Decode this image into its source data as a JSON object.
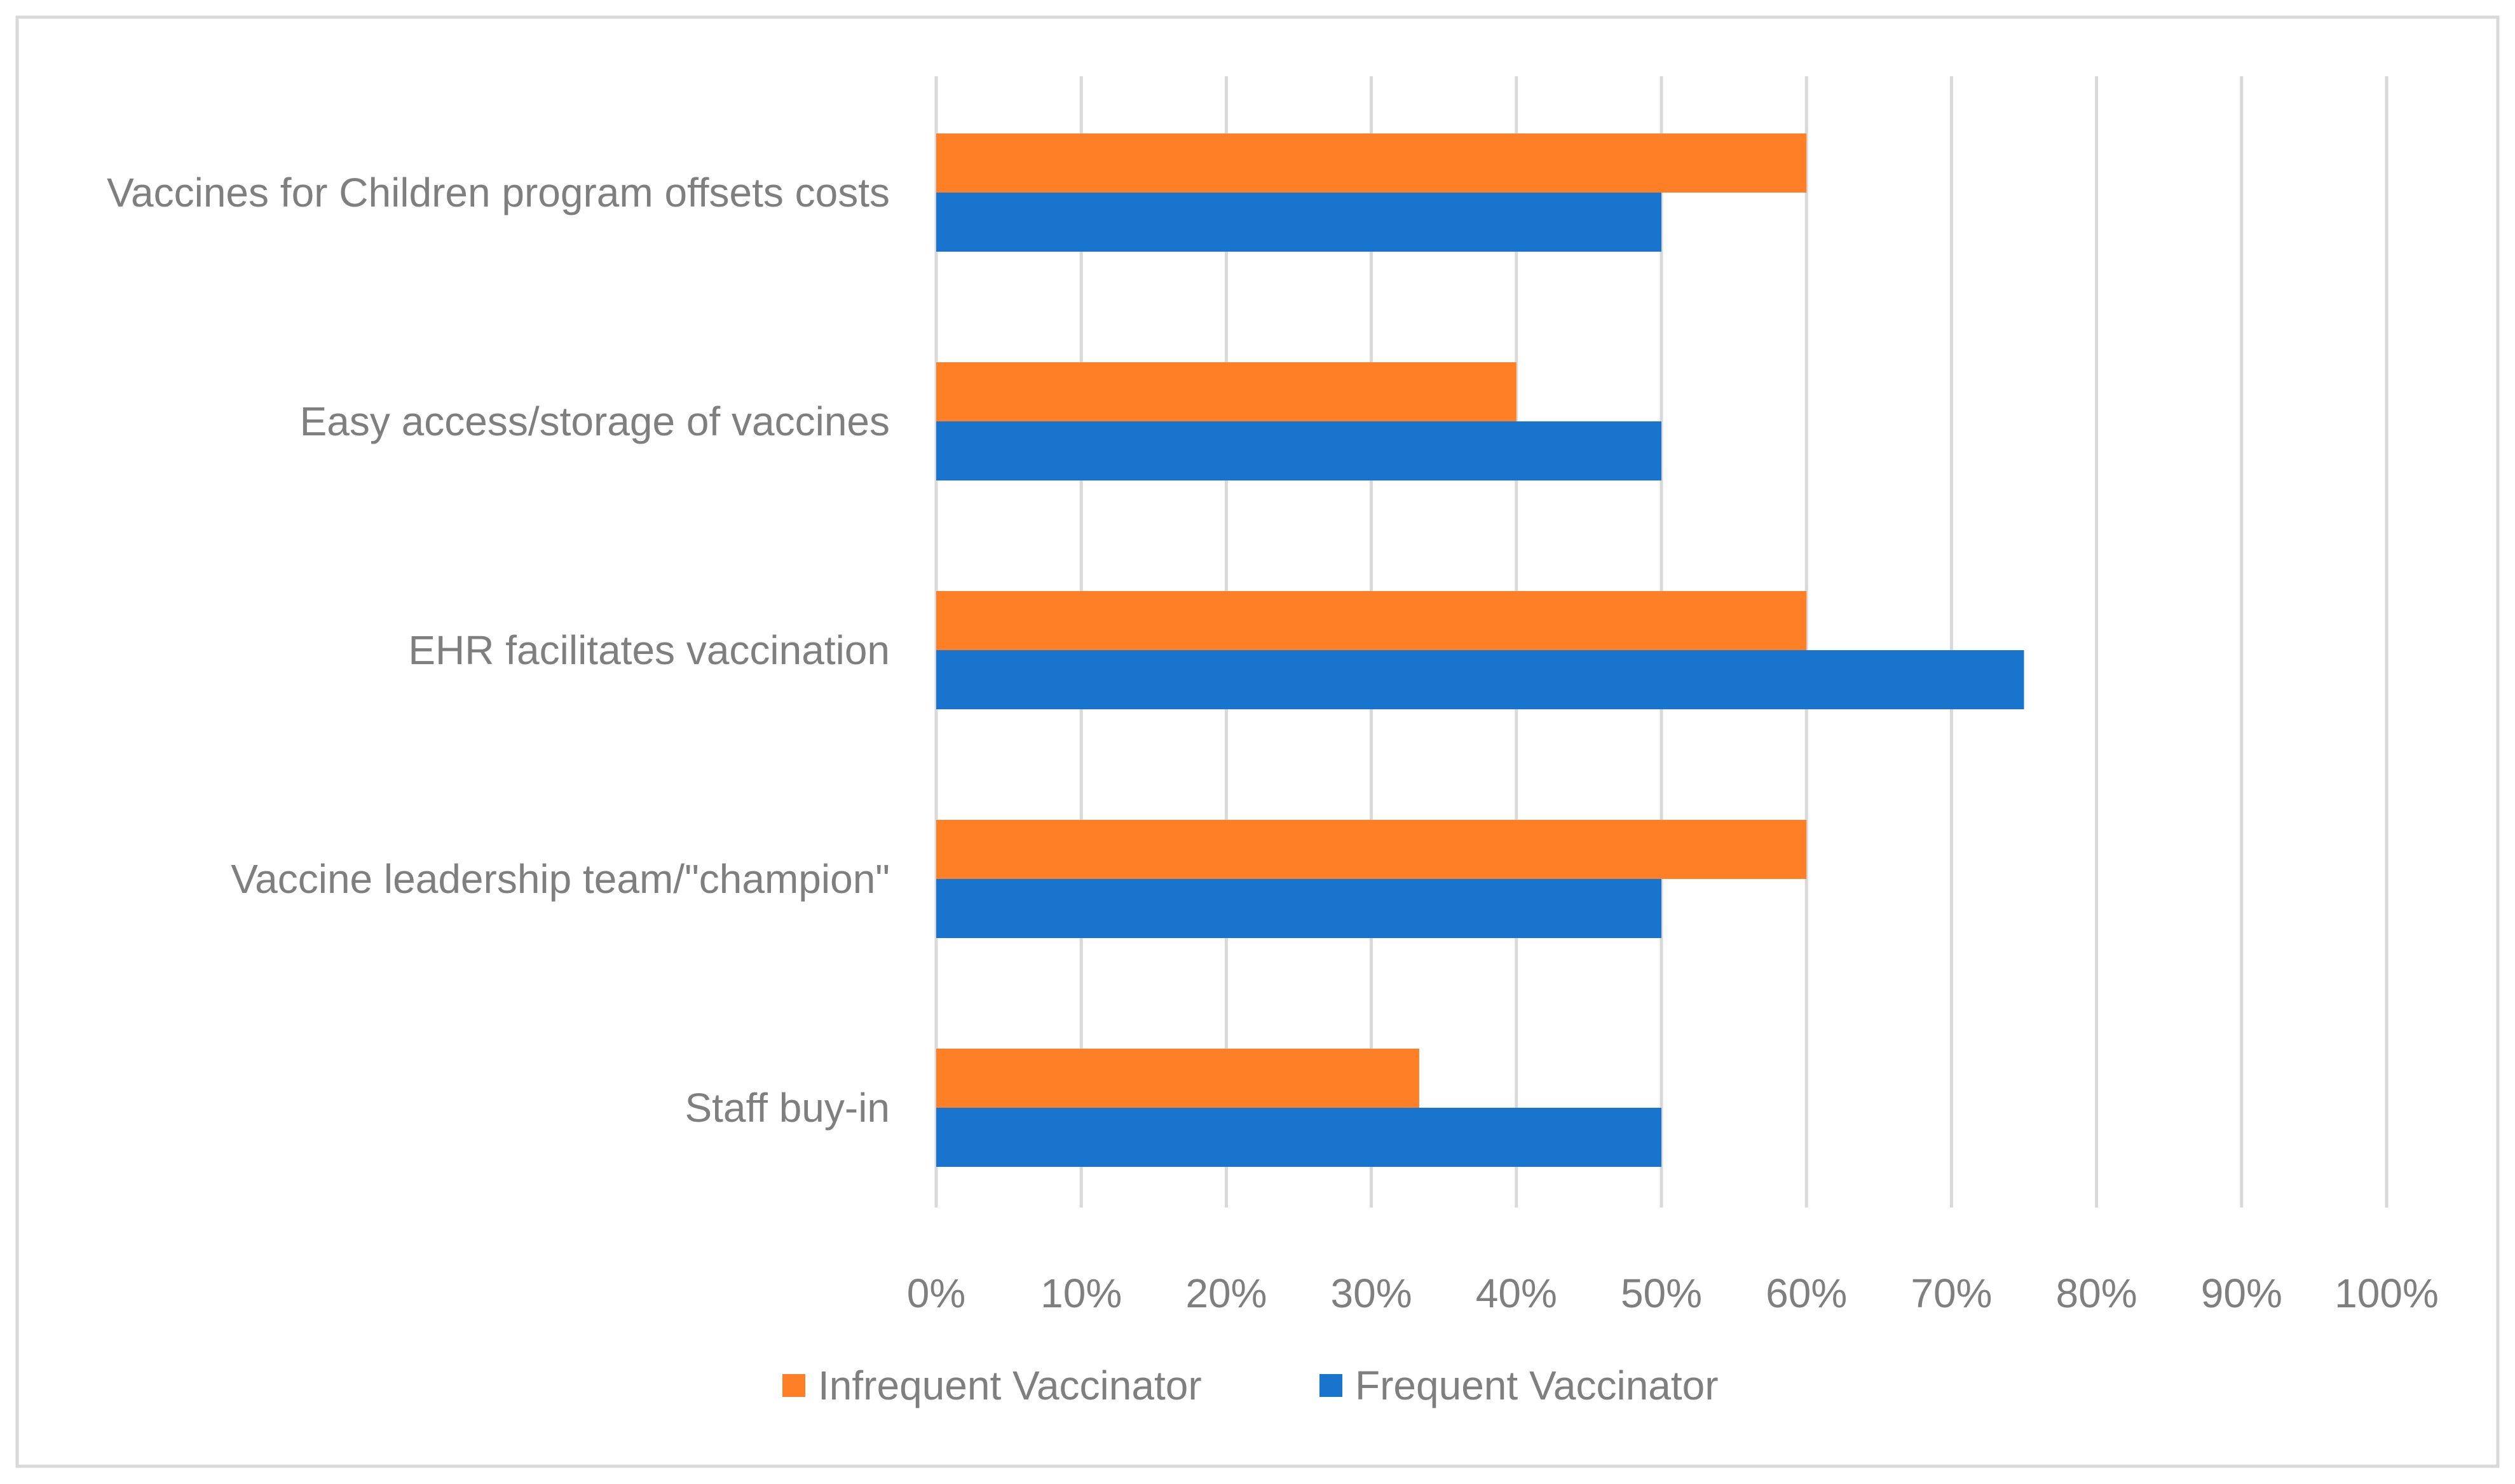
{
  "chart_data": {
    "type": "bar",
    "orientation": "horizontal",
    "title": "",
    "xlabel": "",
    "ylabel": "",
    "categories": [
      "Vaccines for Children program offsets costs",
      "Easy access/storage of vaccines",
      "EHR facilitates vaccination",
      "Vaccine leadership team/\"champion\"",
      "Staff buy-in"
    ],
    "series": [
      {
        "name": "Infrequent Vaccinator",
        "color": "#ff7f27",
        "values": [
          60,
          40,
          60,
          60,
          33.3
        ]
      },
      {
        "name": "Frequent Vaccinator",
        "color": "#1874cd",
        "values": [
          50,
          50,
          75,
          50,
          50
        ]
      }
    ],
    "xlim": [
      0,
      100
    ],
    "x_ticks": [
      "0%",
      "10%",
      "20%",
      "30%",
      "40%",
      "50%",
      "60%",
      "70%",
      "80%",
      "90%",
      "100%"
    ],
    "grid": true,
    "legend_position": "bottom"
  },
  "colors": {
    "gridline": "#d9d9d9",
    "frame": "#d9d9d9",
    "text": "#7f7f7f"
  }
}
